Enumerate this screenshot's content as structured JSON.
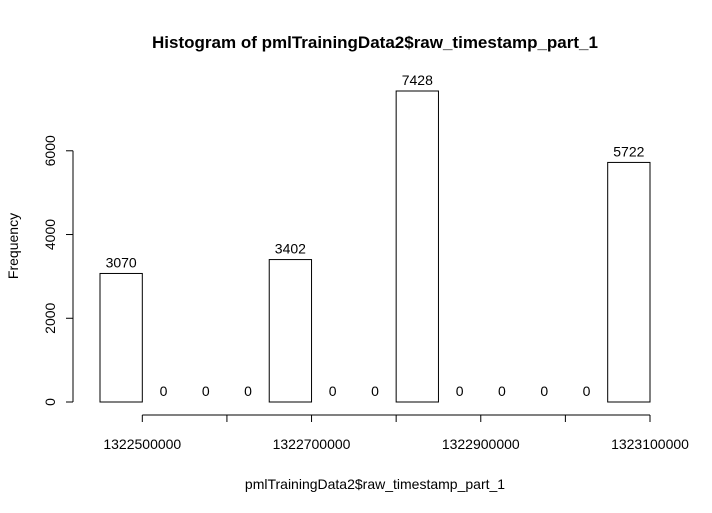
{
  "chart_data": {
    "type": "bar",
    "title": "Histogram of pmlTrainingData2$raw_timestamp_part_1",
    "xlabel": "pmlTrainingData2$raw_timestamp_part_1",
    "ylabel": "Frequency",
    "bins": [
      {
        "start": 1322450000,
        "end": 1322500000,
        "count": 3070
      },
      {
        "start": 1322500000,
        "end": 1322550000,
        "count": 0
      },
      {
        "start": 1322550000,
        "end": 1322600000,
        "count": 0
      },
      {
        "start": 1322600000,
        "end": 1322650000,
        "count": 0
      },
      {
        "start": 1322650000,
        "end": 1322700000,
        "count": 3402
      },
      {
        "start": 1322700000,
        "end": 1322750000,
        "count": 0
      },
      {
        "start": 1322750000,
        "end": 1322800000,
        "count": 0
      },
      {
        "start": 1322800000,
        "end": 1322850000,
        "count": 7428
      },
      {
        "start": 1322850000,
        "end": 1322900000,
        "count": 0
      },
      {
        "start": 1322900000,
        "end": 1322950000,
        "count": 0
      },
      {
        "start": 1322950000,
        "end": 1323000000,
        "count": 0
      },
      {
        "start": 1323000000,
        "end": 1323050000,
        "count": 0
      },
      {
        "start": 1323050000,
        "end": 1323100000,
        "count": 5722
      }
    ],
    "x_ticks": [
      1322500000,
      1322600000,
      1322700000,
      1322800000,
      1322900000,
      1323000000,
      1323100000
    ],
    "x_tick_labels": [
      "1322500000",
      "",
      "1322700000",
      "",
      "1322900000",
      "",
      "1323100000"
    ],
    "y_ticks": [
      0,
      2000,
      4000,
      6000
    ],
    "y_tick_labels": [
      "0",
      "2000",
      "4000",
      "6000"
    ],
    "xlim": [
      1322450000,
      1323100000
    ],
    "ylim": [
      0,
      7428
    ],
    "grid": false,
    "legend": "none"
  }
}
